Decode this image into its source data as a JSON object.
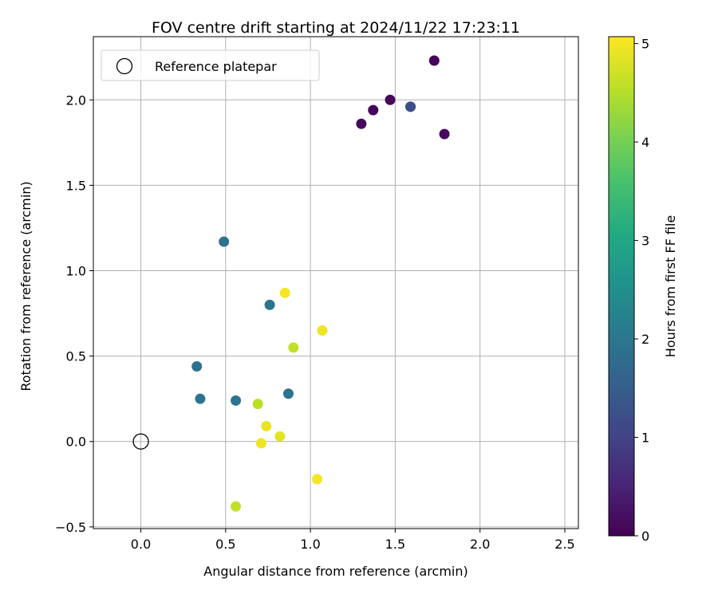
{
  "chart_data": {
    "type": "scatter",
    "title": "FOV centre drift starting at 2024/11/22 17:23:11",
    "xlabel": "Angular distance from reference (arcmin)",
    "ylabel": "Rotation from reference (arcmin)",
    "xlim": [
      -0.28,
      2.58
    ],
    "ylim": [
      -0.51,
      2.37
    ],
    "xticks": [
      0.0,
      0.5,
      1.0,
      1.5,
      2.0,
      2.5
    ],
    "xtick_labels": [
      "0.0",
      "0.5",
      "1.0",
      "1.5",
      "2.0",
      "2.5"
    ],
    "yticks": [
      -0.5,
      0.0,
      0.5,
      1.0,
      1.5,
      2.0
    ],
    "ytick_labels": [
      "−0.5",
      "0.0",
      "0.5",
      "1.0",
      "1.5",
      "2.0"
    ],
    "grid": true,
    "legend": {
      "placement": "upper-left",
      "entries": [
        "Reference platepar"
      ]
    },
    "reference_point": {
      "x": 0.0,
      "y": 0.0
    },
    "colorbar": {
      "label": "Hours from first FF file",
      "colormap": "viridis",
      "range": [
        0,
        5.07
      ],
      "ticks": [
        0,
        1,
        2,
        3,
        4,
        5
      ],
      "tick_labels": [
        "0",
        "1",
        "2",
        "3",
        "4",
        "5"
      ]
    },
    "points": [
      {
        "x": 1.73,
        "y": 2.23,
        "c": 0.05
      },
      {
        "x": 1.47,
        "y": 2.0,
        "c": 0.1
      },
      {
        "x": 1.37,
        "y": 1.94,
        "c": 0.1
      },
      {
        "x": 1.3,
        "y": 1.86,
        "c": 0.1
      },
      {
        "x": 1.79,
        "y": 1.8,
        "c": 0.15
      },
      {
        "x": 1.59,
        "y": 1.96,
        "c": 0.6
      },
      {
        "x": 1.59,
        "y": 1.96,
        "c": 1.2
      },
      {
        "x": 0.49,
        "y": 1.17,
        "c": 1.9
      },
      {
        "x": 0.76,
        "y": 0.8,
        "c": 1.95
      },
      {
        "x": 0.33,
        "y": 0.44,
        "c": 1.9
      },
      {
        "x": 0.35,
        "y": 0.25,
        "c": 1.95
      },
      {
        "x": 0.56,
        "y": 0.24,
        "c": 1.95
      },
      {
        "x": 0.87,
        "y": 0.28,
        "c": 1.9
      },
      {
        "x": 0.85,
        "y": 0.87,
        "c": 5.0
      },
      {
        "x": 1.07,
        "y": 0.65,
        "c": 4.95
      },
      {
        "x": 0.9,
        "y": 0.55,
        "c": 4.6
      },
      {
        "x": 0.69,
        "y": 0.22,
        "c": 4.55
      },
      {
        "x": 0.74,
        "y": 0.09,
        "c": 4.9
      },
      {
        "x": 0.82,
        "y": 0.03,
        "c": 4.85
      },
      {
        "x": 0.71,
        "y": -0.01,
        "c": 4.95
      },
      {
        "x": 1.04,
        "y": -0.22,
        "c": 5.0
      },
      {
        "x": 0.56,
        "y": -0.38,
        "c": 4.6
      }
    ]
  }
}
